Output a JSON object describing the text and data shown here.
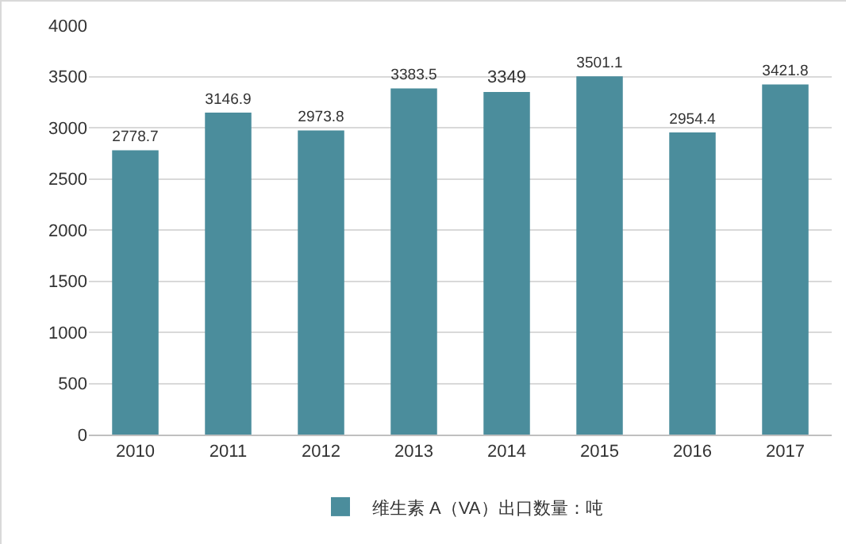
{
  "chart_data": {
    "type": "bar",
    "categories": [
      "2010",
      "2011",
      "2012",
      "2013",
      "2014",
      "2015",
      "2016",
      "2017"
    ],
    "series": [
      {
        "name": "维生素 A（VA）出口数量：吨",
        "color": "#4b8d9c",
        "values": [
          2778.7,
          3146.9,
          2973.8,
          3383.5,
          3349,
          3501.1,
          2954.4,
          3421.8
        ]
      }
    ],
    "ylim": [
      0,
      4000
    ],
    "yticks": [
      0,
      500,
      1000,
      1500,
      2000,
      2500,
      3000,
      3500,
      4000
    ],
    "grid": "y",
    "legend": "bottom",
    "data_labels": true
  }
}
